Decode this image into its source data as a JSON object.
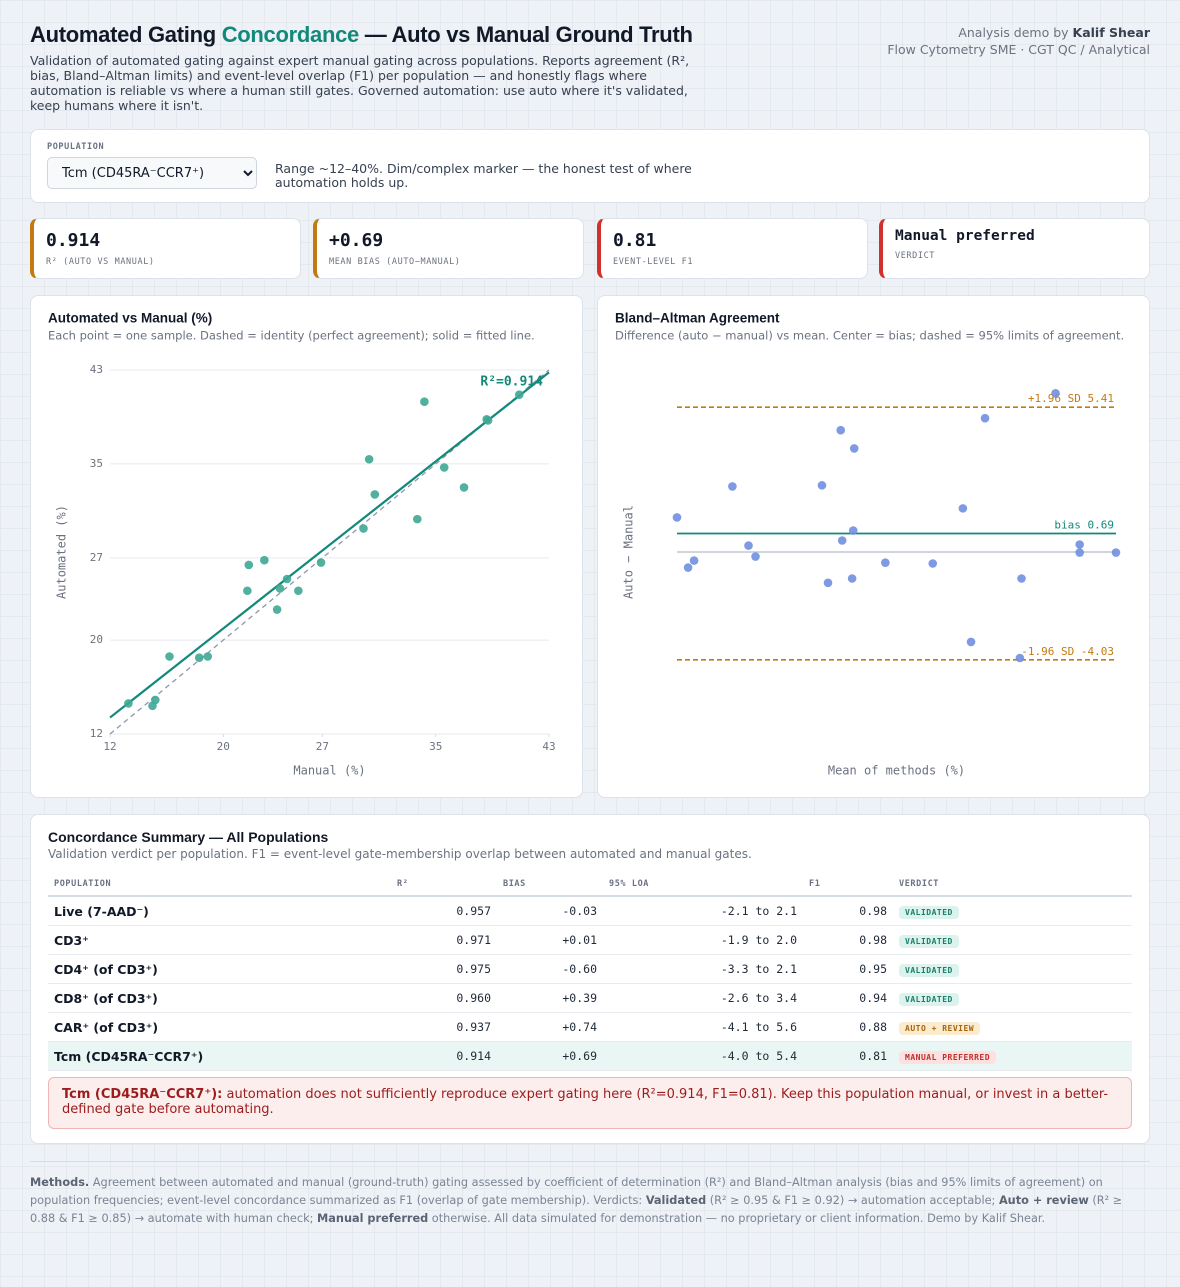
{
  "header": {
    "title": [
      "Automated Gating ",
      "Concordance",
      " — Auto vs Manual Ground Truth"
    ],
    "subtitle": "Validation of automated gating against expert manual gating across populations. Reports agreement (R², bias, Bland–Altman limits) and event-level overlap (F1) per population — and honestly flags where automation is reliable vs where a human still gates. Governed automation: use auto where it's validated, keep humans where it isn't.",
    "byline": [
      "Analysis demo by ",
      "Kalif Shear"
    ],
    "role": "Flow Cytometry SME · CGT QC / Analytical"
  },
  "population": {
    "label": "POPULATION",
    "selected": "Tcm (CD45RA⁻CCR7⁺)",
    "note": "Range ~12–40%. Dim/complex marker — the honest test of where automation holds up."
  },
  "kpis": [
    {
      "value": "0.914",
      "label": "R² (AUTO VS MANUAL)",
      "color": "#c47a12"
    },
    {
      "value": "+0.69",
      "label": "MEAN BIAS (AUTO−MANUAL)",
      "color": "#c47a12"
    },
    {
      "value": "0.81",
      "label": "EVENT-LEVEL F1",
      "color": "#d0312d"
    },
    {
      "value": "Manual preferred",
      "label": "VERDICT",
      "color": "#d0312d"
    }
  ],
  "chart_data": [
    {
      "type": "scatter",
      "title": "Automated vs Manual (%)",
      "subtitle": "Each point = one sample. Dashed = identity (perfect agreement); solid = fitted line.",
      "x_label": "Manual (%)",
      "y_label": "Automated (%)",
      "x": [
        13.3,
        15.0,
        15.2,
        16.2,
        18.3,
        18.9,
        21.7,
        21.8,
        22.9,
        23.8,
        24.0,
        24.5,
        25.3,
        26.9,
        29.9,
        30.3,
        30.7,
        33.7,
        34.2,
        35.6,
        37.0,
        38.6,
        38.7,
        40.9
      ],
      "values": [
        14.6,
        14.4,
        14.9,
        18.6,
        18.5,
        18.6,
        24.2,
        26.4,
        26.8,
        22.6,
        24.4,
        25.2,
        24.2,
        26.6,
        29.5,
        35.4,
        32.4,
        30.3,
        40.3,
        34.7,
        33.0,
        38.8,
        38.7,
        40.9
      ],
      "color": "#3ea894",
      "xlim": [
        12,
        43
      ],
      "ylim": [
        12,
        43
      ],
      "xticks": [
        12,
        20,
        27,
        35,
        43
      ],
      "yticks": [
        12,
        20,
        27,
        35,
        43
      ],
      "grid": true,
      "lines": [
        {
          "style": "dashed",
          "color": "#8d97a8",
          "x": [
            12,
            43
          ],
          "values": [
            12,
            43
          ]
        },
        {
          "style": "solid",
          "color": "#12897a",
          "x": [
            12,
            43
          ],
          "values": [
            13.4,
            42.8
          ]
        }
      ],
      "annotation": "R²=0.914"
    },
    {
      "type": "scatter",
      "title": "Bland–Altman Agreement",
      "subtitle": "Difference (auto − manual) vs mean. Center = bias; dashed = 95% limits of agreement.",
      "x_label": "Mean of methods (%)",
      "y_label": "Auto − Manual",
      "x": [
        13.95,
        14.63,
        15.0,
        17.35,
        18.34,
        18.77,
        22.85,
        23.22,
        24.0,
        24.09,
        24.7,
        24.77,
        24.83,
        26.74,
        29.65,
        31.5,
        32.0,
        32.86,
        35.0,
        35.1,
        37.19,
        38.67,
        38.67,
        40.9
      ],
      "values": [
        1.29,
        -0.58,
        -0.32,
        2.45,
        0.24,
        -0.17,
        2.49,
        -1.15,
        4.55,
        0.43,
        -0.99,
        0.8,
        3.87,
        -0.4,
        -0.43,
        1.63,
        -3.36,
        5.0,
        -3.96,
        -0.99,
        5.93,
        0.28,
        -0.02,
        -0.02
      ],
      "color": "#6f8fe0",
      "xlim": [
        13.95,
        40.9
      ],
      "ylim": [
        -6.8,
        6.8
      ],
      "grid": false,
      "hlines": [
        {
          "value": 0,
          "color": "#c9cfd8",
          "style": "solid"
        },
        {
          "value": 0.69,
          "label": "bias 0.69",
          "color": "#12897a",
          "style": "solid"
        },
        {
          "value": 5.41,
          "label": "+1.96 SD 5.41",
          "color": "#c47a12",
          "style": "dashed"
        },
        {
          "value": -4.03,
          "label": "-1.96 SD -4.03",
          "color": "#c47a12",
          "style": "dashed"
        }
      ]
    }
  ],
  "table": {
    "title": "Concordance Summary — All Populations",
    "subtitle": "Validation verdict per population. F1 = event-level gate-membership overlap between automated and manual gates.",
    "headers": [
      "POPULATION",
      "R²",
      "BIAS",
      "95% LOA",
      "F1",
      "VERDICT"
    ],
    "rows": [
      {
        "cells": [
          "Live (7-AAD⁻)",
          "0.957",
          "-0.03",
          "-2.1 to 2.1",
          "0.98"
        ],
        "verdict": "VALIDATED",
        "verdict_color": "#1a7f6b",
        "verdict_bg": "#dcf2ec"
      },
      {
        "cells": [
          "CD3⁺",
          "0.971",
          "+0.01",
          "-1.9 to 2.0",
          "0.98"
        ],
        "verdict": "VALIDATED",
        "verdict_color": "#1a7f6b",
        "verdict_bg": "#dcf2ec"
      },
      {
        "cells": [
          "CD4⁺ (of CD3⁺)",
          "0.975",
          "-0.60",
          "-3.3 to 2.1",
          "0.95"
        ],
        "verdict": "VALIDATED",
        "verdict_color": "#1a7f6b",
        "verdict_bg": "#dcf2ec"
      },
      {
        "cells": [
          "CD8⁺ (of CD3⁺)",
          "0.960",
          "+0.39",
          "-2.6 to 3.4",
          "0.94"
        ],
        "verdict": "VALIDATED",
        "verdict_color": "#1a7f6b",
        "verdict_bg": "#dcf2ec"
      },
      {
        "cells": [
          "CAR⁺ (of CD3⁺)",
          "0.937",
          "+0.74",
          "-4.1 to 5.6",
          "0.88"
        ],
        "verdict": "AUTO + REVIEW",
        "verdict_color": "#a8640c",
        "verdict_bg": "#fbeccf"
      },
      {
        "cells": [
          "Tcm (CD45RA⁻CCR7⁺)",
          "0.914",
          "+0.69",
          "-4.0 to 5.4",
          "0.81"
        ],
        "verdict": "MANUAL PREFERRED",
        "verdict_color": "#c0302b",
        "verdict_bg": "#fde0e0",
        "highlight": true
      }
    ]
  },
  "alert": {
    "lead": "Tcm (CD45RA⁻CCR7⁺):",
    "text": " automation does not sufficiently reproduce expert gating here (R²=0.914, F1=0.81). Keep this population manual, or invest in a better-defined gate before automating."
  },
  "footer": {
    "parts": [
      "Methods.",
      " Agreement between automated and manual (ground-truth) gating assessed by coefficient of determination (R²) and Bland–Altman analysis (bias and 95% limits of agreement) on population frequencies; event-level concordance summarized as F1 (overlap of gate membership). Verdicts: ",
      "Validated",
      " (R² ≥ 0.95 & F1 ≥ 0.92) → automation acceptable; ",
      "Auto + review",
      " (R² ≥ 0.88 & F1 ≥ 0.85) → automate with human check; ",
      "Manual preferred",
      " otherwise. All data simulated for demonstration — no proprietary or client information. Demo by Kalif Shear."
    ]
  }
}
